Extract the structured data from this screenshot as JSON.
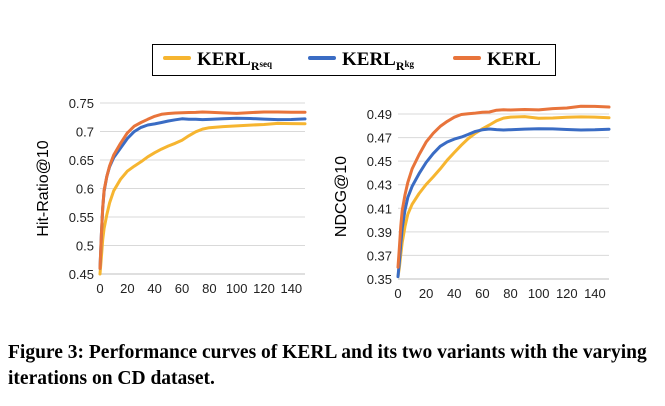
{
  "legend": {
    "items": [
      {
        "base": "KERL",
        "sub": "R",
        "subsub": "seq",
        "color": "#f6b530"
      },
      {
        "base": "KERL",
        "sub": "R",
        "subsub": "kg",
        "color": "#3a6cc4"
      },
      {
        "base": "KERL",
        "sub": "",
        "subsub": "",
        "color": "#e8743b"
      }
    ]
  },
  "caption": "Figure 3: Performance curves of KERL and its two variants with the varying iterations on CD dataset.",
  "chart_data": [
    {
      "type": "line",
      "ylabel": "Hit-Ratio@10",
      "xlabel": "",
      "xlim": [
        0,
        150
      ],
      "ylim": [
        0.45,
        0.75
      ],
      "xticks": [
        0,
        20,
        40,
        60,
        80,
        100,
        120,
        140
      ],
      "xtick_labels": [
        "0",
        "20",
        "40",
        "60",
        "80",
        "100",
        "120",
        "140"
      ],
      "yticks": [
        0.45,
        0.5,
        0.55,
        0.6,
        0.65,
        0.7,
        0.75
      ],
      "ytick_labels": [
        "0.45",
        "0.5",
        "0.55",
        "0.6",
        "0.65",
        "0.7",
        "0.75"
      ],
      "grid": true,
      "x": [
        0,
        1,
        2,
        3,
        5,
        7,
        10,
        15,
        20,
        25,
        30,
        35,
        40,
        45,
        50,
        55,
        60,
        65,
        70,
        75,
        80,
        90,
        100,
        110,
        120,
        130,
        140,
        150
      ],
      "series": [
        {
          "name": "KERL_Rseq",
          "color": "#f6b530",
          "values": [
            0.45,
            0.48,
            0.51,
            0.53,
            0.555,
            0.575,
            0.595,
            0.615,
            0.63,
            0.64,
            0.648,
            0.656,
            0.662,
            0.668,
            0.674,
            0.68,
            0.686,
            0.693,
            0.699,
            0.703,
            0.706,
            0.709,
            0.711,
            0.712,
            0.712,
            0.713,
            0.713,
            0.714
          ]
        },
        {
          "name": "KERL_Rkg",
          "color": "#3a6cc4",
          "values": [
            0.46,
            0.52,
            0.565,
            0.595,
            0.62,
            0.638,
            0.655,
            0.672,
            0.688,
            0.699,
            0.706,
            0.711,
            0.714,
            0.717,
            0.719,
            0.72,
            0.721,
            0.721,
            0.722,
            0.722,
            0.722,
            0.722,
            0.722,
            0.722,
            0.722,
            0.722,
            0.722,
            0.722
          ]
        },
        {
          "name": "KERL",
          "color": "#e8743b",
          "values": [
            0.46,
            0.52,
            0.566,
            0.597,
            0.622,
            0.64,
            0.658,
            0.678,
            0.697,
            0.71,
            0.717,
            0.722,
            0.726,
            0.729,
            0.731,
            0.733,
            0.734,
            0.734,
            0.733,
            0.733,
            0.733,
            0.733,
            0.733,
            0.734,
            0.734,
            0.733,
            0.733,
            0.734
          ]
        }
      ]
    },
    {
      "type": "line",
      "ylabel": "NDCG@10",
      "xlabel": "",
      "xlim": [
        0,
        150
      ],
      "ylim": [
        0.35,
        0.5
      ],
      "xticks": [
        0,
        20,
        40,
        60,
        80,
        100,
        120,
        140
      ],
      "xtick_labels": [
        "0",
        "20",
        "40",
        "60",
        "80",
        "100",
        "120",
        "140"
      ],
      "yticks": [
        0.35,
        0.37,
        0.39,
        0.41,
        0.43,
        0.45,
        0.47,
        0.49
      ],
      "ytick_labels": [
        "0.35",
        "0.37",
        "0.39",
        "0.41",
        "0.43",
        "0.45",
        "0.47",
        "0.49"
      ],
      "grid": true,
      "x": [
        0,
        1,
        2,
        3,
        5,
        7,
        10,
        15,
        20,
        25,
        30,
        35,
        40,
        45,
        50,
        55,
        60,
        65,
        70,
        75,
        80,
        90,
        100,
        110,
        120,
        130,
        140,
        150
      ],
      "series": [
        {
          "name": "KERL_Rseq",
          "color": "#f6b530",
          "values": [
            0.352,
            0.36,
            0.371,
            0.381,
            0.395,
            0.405,
            0.413,
            0.422,
            0.43,
            0.437,
            0.444,
            0.451,
            0.457,
            0.463,
            0.469,
            0.474,
            0.478,
            0.481,
            0.484,
            0.486,
            0.487,
            0.488,
            0.487,
            0.487,
            0.487,
            0.487,
            0.487,
            0.487
          ]
        },
        {
          "name": "KERL_Rkg",
          "color": "#3a6cc4",
          "values": [
            0.352,
            0.365,
            0.38,
            0.393,
            0.408,
            0.419,
            0.429,
            0.44,
            0.449,
            0.456,
            0.462,
            0.466,
            0.469,
            0.471,
            0.473,
            0.475,
            0.476,
            0.477,
            0.477,
            0.477,
            0.477,
            0.477,
            0.477,
            0.477,
            0.477,
            0.477,
            0.477,
            0.477
          ]
        },
        {
          "name": "KERL",
          "color": "#e8743b",
          "values": [
            0.36,
            0.377,
            0.395,
            0.408,
            0.422,
            0.432,
            0.443,
            0.455,
            0.466,
            0.474,
            0.48,
            0.484,
            0.487,
            0.489,
            0.49,
            0.491,
            0.492,
            0.492,
            0.493,
            0.493,
            0.493,
            0.494,
            0.494,
            0.495,
            0.495,
            0.496,
            0.496,
            0.496
          ]
        }
      ]
    }
  ]
}
